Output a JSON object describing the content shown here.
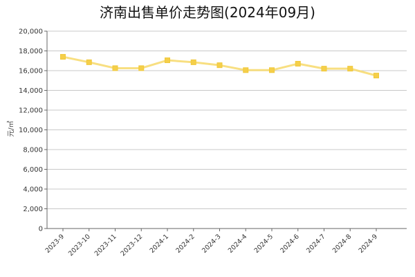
{
  "chart_data": {
    "type": "line",
    "title": "济南出售单价走势图(2024年09月)",
    "ylabel": "元/㎡",
    "xlabel": "",
    "ylim": [
      0,
      20000
    ],
    "yticks": [
      0,
      2000,
      4000,
      6000,
      8000,
      10000,
      12000,
      14000,
      16000,
      18000,
      20000
    ],
    "ytick_labels": [
      "0",
      "2,000",
      "4,000",
      "6,000",
      "8,000",
      "10,000",
      "12,000",
      "14,000",
      "16,000",
      "18,000",
      "20,000"
    ],
    "grid": true,
    "legend": "none",
    "categories": [
      "2023-9",
      "2023-10",
      "2023-11",
      "2023-12",
      "2024-1",
      "2024-2",
      "2024-3",
      "2024-4",
      "2024-5",
      "2024-6",
      "2024-7",
      "2024-8",
      "2024-9"
    ],
    "series": [
      {
        "values": [
          17400,
          16850,
          16250,
          16250,
          17050,
          16850,
          16550,
          16050,
          16050,
          16700,
          16200,
          16200,
          15500
        ],
        "color": "#f7d96b"
      }
    ]
  }
}
